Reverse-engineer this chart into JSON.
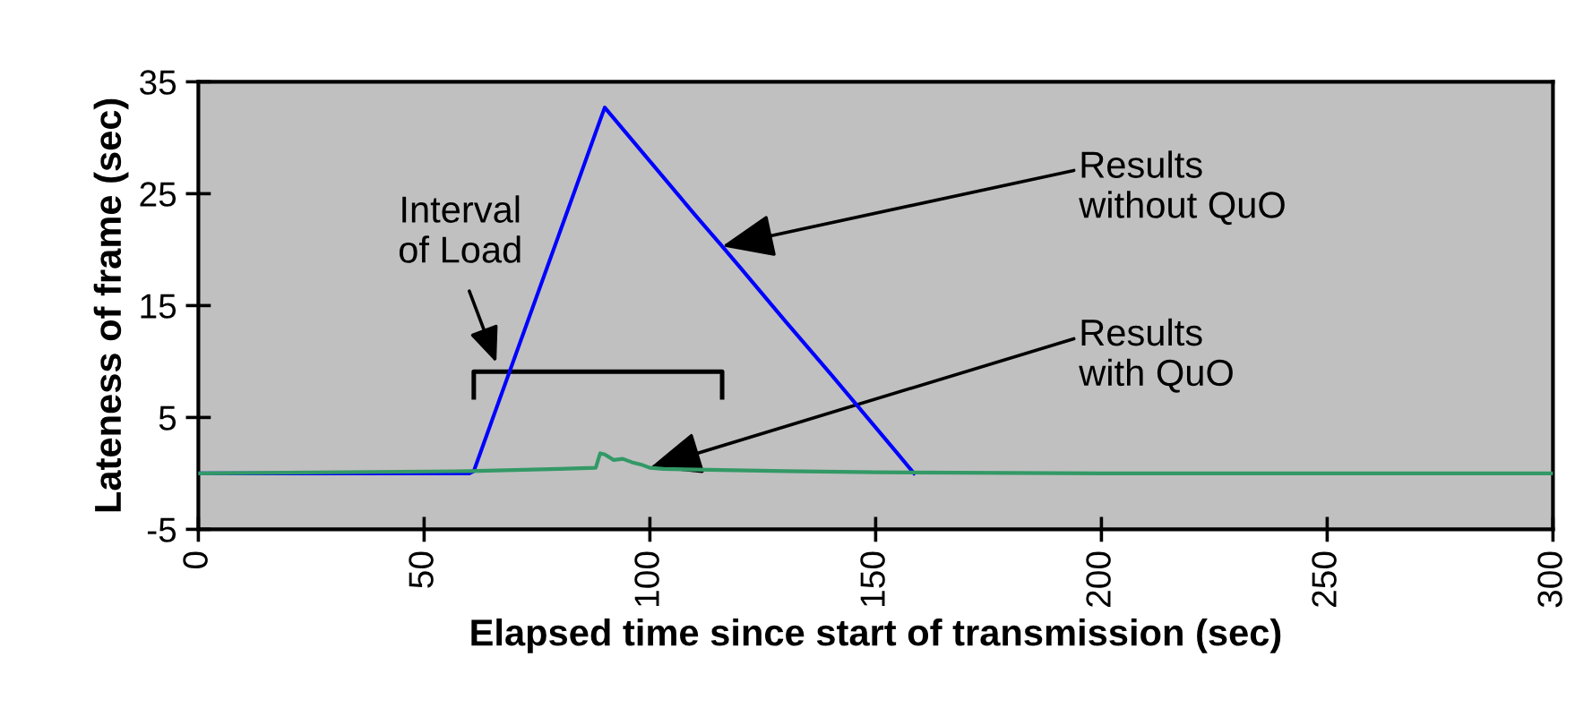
{
  "chart_data": {
    "type": "line",
    "xlabel": "Elapsed time since start of transmission (sec)",
    "ylabel": "Lateness of frame (sec)",
    "xlim": [
      0,
      300
    ],
    "xticks": [
      0,
      50,
      100,
      150,
      200,
      250,
      300
    ],
    "ylim": [
      -5,
      35
    ],
    "yticks": [
      -5,
      5,
      15,
      25,
      35
    ],
    "grid": false,
    "line_style": "solid",
    "marker": "none",
    "series": [
      {
        "color": "#0000ff",
        "x": [
          0,
          30,
          60,
          61,
          65,
          70,
          75,
          80,
          85,
          89,
          90,
          100,
          110,
          116,
          120,
          130,
          140,
          150,
          155,
          158.5
        ],
        "values": [
          0,
          0,
          0,
          0.2,
          4.7,
          10.3,
          15.9,
          21.5,
          27.1,
          31.6,
          32.7,
          27.9,
          23.1,
          20.3,
          18.4,
          13.6,
          8.9,
          4.1,
          1.7,
          0
        ]
      },
      {
        "color": "#339966",
        "x": [
          0,
          60,
          80,
          88,
          89,
          90,
          92,
          94,
          96,
          98,
          100,
          103,
          130,
          150,
          200,
          250,
          300
        ],
        "values": [
          0,
          0.2,
          0.4,
          0.5,
          1.8,
          1.7,
          1.2,
          1.3,
          1.0,
          0.8,
          0.5,
          0.4,
          0.2,
          0.1,
          0,
          0,
          0
        ]
      }
    ],
    "annotations": [
      "Interval\nof Load",
      {
        "text": "Results\nwithout QuO",
        "x": 116,
        "y": 20.3
      },
      {
        "text": "Results\nwith QuO",
        "x": 100,
        "y": 0.5
      }
    ]
  }
}
